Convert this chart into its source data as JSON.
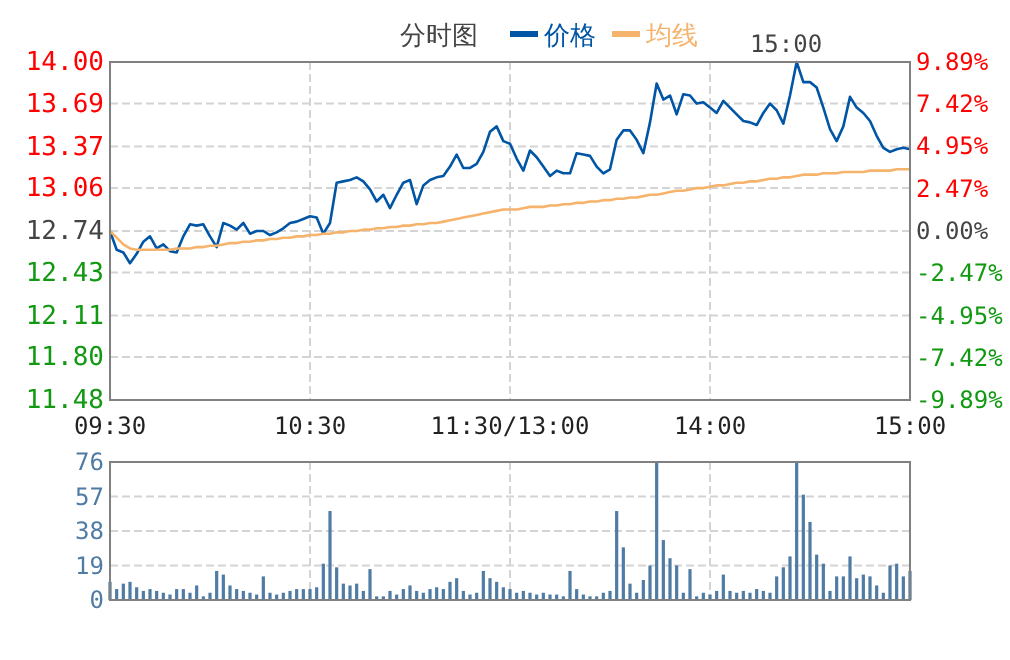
{
  "chart_data": [
    {
      "type": "line",
      "title": "分时图",
      "legend": "top",
      "grid": true,
      "marker": "none",
      "line_style": "solid",
      "annotations": [
        "15:00"
      ],
      "categories": [
        "09:30",
        null,
        null,
        null,
        null,
        null,
        null,
        null,
        null,
        null,
        null,
        null,
        null,
        null,
        null,
        null,
        null,
        null,
        null,
        null,
        null,
        null,
        null,
        null,
        null,
        null,
        null,
        null,
        null,
        null,
        "10:30",
        null,
        null,
        null,
        null,
        null,
        null,
        null,
        null,
        null,
        null,
        null,
        null,
        null,
        null,
        null,
        null,
        null,
        null,
        null,
        null,
        null,
        null,
        null,
        null,
        null,
        null,
        null,
        null,
        null,
        "11:30/13:00",
        null,
        null,
        null,
        null,
        null,
        null,
        null,
        null,
        null,
        null,
        null,
        null,
        null,
        null,
        null,
        null,
        null,
        null,
        null,
        null,
        null,
        null,
        null,
        null,
        null,
        null,
        null,
        null,
        null,
        "14:00",
        null,
        null,
        null,
        null,
        null,
        null,
        null,
        null,
        null,
        null,
        null,
        null,
        null,
        null,
        null,
        null,
        null,
        null,
        null,
        null,
        null,
        null,
        null,
        null,
        null,
        null,
        null,
        null,
        null,
        "15:00"
      ],
      "ylim": [
        11.48,
        14.0
      ],
      "yticks": [
        {
          "value": 11.48,
          "label": "11.48"
        },
        {
          "value": 11.8,
          "label": "11.80"
        },
        {
          "value": 12.11,
          "label": "12.11"
        },
        {
          "value": 12.43,
          "label": "12.43"
        },
        {
          "value": 12.74,
          "label": "12.74"
        },
        {
          "value": 13.06,
          "label": "13.06"
        },
        {
          "value": 13.37,
          "label": "13.37"
        },
        {
          "value": 13.69,
          "label": "13.69"
        },
        {
          "value": 14.0,
          "label": "14.00"
        }
      ],
      "y2lim": [
        -9.89,
        9.89
      ],
      "y2ticks": [
        {
          "value": -9.89,
          "label": "-9.89%"
        },
        {
          "value": -7.42,
          "label": "-7.42%"
        },
        {
          "value": -4.95,
          "label": "-4.95%"
        },
        {
          "value": -2.47,
          "label": "-2.47%"
        },
        {
          "value": 0,
          "label": "0.00%"
        },
        {
          "value": 2.47,
          "label": "2.47%"
        },
        {
          "value": 4.95,
          "label": "4.95%"
        },
        {
          "value": 7.42,
          "label": "7.42%"
        },
        {
          "value": 9.89,
          "label": "9.89%"
        }
      ],
      "series": [
        {
          "name": "价格",
          "color": "#0055a5",
          "values": [
            12.74,
            12.6,
            12.58,
            12.5,
            12.57,
            12.66,
            12.7,
            12.61,
            12.64,
            12.59,
            12.58,
            12.7,
            12.79,
            12.78,
            12.79,
            12.7,
            12.62,
            12.8,
            12.78,
            12.75,
            12.8,
            12.72,
            12.74,
            12.74,
            12.71,
            12.73,
            12.76,
            12.8,
            12.81,
            12.83,
            12.85,
            12.84,
            12.72,
            12.8,
            13.1,
            13.11,
            13.12,
            13.14,
            13.11,
            13.05,
            12.96,
            13.01,
            12.91,
            13.01,
            13.1,
            13.12,
            12.94,
            13.08,
            13.12,
            13.14,
            13.15,
            13.22,
            13.31,
            13.21,
            13.21,
            13.24,
            13.33,
            13.48,
            13.52,
            13.41,
            13.39,
            13.28,
            13.19,
            13.34,
            13.29,
            13.22,
            13.15,
            13.19,
            13.17,
            13.17,
            13.32,
            13.31,
            13.3,
            13.22,
            13.17,
            13.2,
            13.42,
            13.49,
            13.49,
            13.42,
            13.32,
            13.55,
            13.84,
            13.72,
            13.75,
            13.61,
            13.76,
            13.75,
            13.69,
            13.7,
            13.66,
            13.62,
            13.71,
            13.66,
            13.61,
            13.56,
            13.55,
            13.53,
            13.62,
            13.69,
            13.64,
            13.54,
            13.75,
            14.0,
            13.85,
            13.85,
            13.81,
            13.66,
            13.5,
            13.41,
            13.52,
            13.74,
            13.66,
            13.62,
            13.56,
            13.45,
            13.36,
            13.33,
            13.35,
            13.36,
            13.35
          ]
        },
        {
          "name": "均线",
          "color": "#f5b36b",
          "values": [
            12.74,
            12.69,
            12.64,
            12.61,
            12.6,
            12.6,
            12.6,
            12.6,
            12.6,
            12.6,
            12.61,
            12.61,
            12.61,
            12.62,
            12.62,
            12.63,
            12.63,
            12.64,
            12.65,
            12.65,
            12.66,
            12.66,
            12.67,
            12.67,
            12.68,
            12.68,
            12.69,
            12.69,
            12.7,
            12.7,
            12.71,
            12.71,
            12.72,
            12.72,
            12.73,
            12.73,
            12.74,
            12.74,
            12.75,
            12.75,
            12.76,
            12.76,
            12.77,
            12.77,
            12.78,
            12.78,
            12.79,
            12.79,
            12.8,
            12.8,
            12.81,
            12.82,
            12.83,
            12.84,
            12.85,
            12.86,
            12.87,
            12.88,
            12.89,
            12.9,
            12.9,
            12.9,
            12.91,
            12.92,
            12.92,
            12.92,
            12.93,
            12.93,
            12.94,
            12.94,
            12.95,
            12.95,
            12.96,
            12.96,
            12.97,
            12.97,
            12.98,
            12.98,
            12.99,
            12.99,
            13.0,
            13.01,
            13.01,
            13.02,
            13.03,
            13.04,
            13.04,
            13.05,
            13.06,
            13.06,
            13.07,
            13.08,
            13.08,
            13.09,
            13.1,
            13.1,
            13.11,
            13.11,
            13.12,
            13.13,
            13.13,
            13.14,
            13.14,
            13.15,
            13.16,
            13.16,
            13.16,
            13.17,
            13.17,
            13.17,
            13.18,
            13.18,
            13.18,
            13.18,
            13.19,
            13.19,
            13.19,
            13.19,
            13.2,
            13.2,
            13.2
          ]
        }
      ]
    },
    {
      "type": "bar",
      "color": "#4f7ba4",
      "grid": true,
      "tick_labels": "y",
      "categories": [
        null,
        null,
        null,
        null,
        null,
        null,
        null,
        null,
        null,
        null,
        null,
        null,
        null,
        null,
        null,
        null,
        null,
        null,
        null,
        null,
        null,
        null,
        null,
        null,
        null,
        null,
        null,
        null,
        null,
        null,
        null,
        null,
        null,
        null,
        null,
        null,
        null,
        null,
        null,
        null,
        null,
        null,
        null,
        null,
        null,
        null,
        null,
        null,
        null,
        null,
        null,
        null,
        null,
        null,
        null,
        null,
        null,
        null,
        null,
        null,
        null,
        null,
        null,
        null,
        null,
        null,
        null,
        null,
        null,
        null,
        null,
        null,
        null,
        null,
        null,
        null,
        null,
        null,
        null,
        null,
        null,
        null,
        null,
        null,
        null,
        null,
        null,
        null,
        null,
        null,
        null,
        null,
        null,
        null,
        null,
        null,
        null,
        null,
        null,
        null,
        null,
        null,
        null,
        null,
        null,
        null,
        null,
        null,
        null,
        null,
        null,
        null,
        null,
        null,
        null,
        null,
        null,
        null,
        null,
        null,
        null
      ],
      "ylim": [
        0,
        76
      ],
      "yticks": [
        0,
        19,
        38,
        57,
        76
      ],
      "values": [
        10,
        6,
        9,
        10,
        7,
        5,
        6,
        5,
        4,
        3,
        6,
        6,
        4,
        8,
        2,
        4,
        16,
        14,
        8,
        6,
        5,
        4,
        3,
        13,
        4,
        3,
        4,
        5,
        6,
        6,
        6,
        7,
        20,
        49,
        18,
        9,
        8,
        9,
        5,
        17,
        2,
        2,
        5,
        3,
        6,
        8,
        5,
        4,
        6,
        7,
        6,
        10,
        12,
        5,
        3,
        4,
        16,
        12,
        10,
        7,
        6,
        4,
        5,
        4,
        3,
        4,
        3,
        3,
        2,
        16,
        6,
        3,
        2,
        2,
        4,
        5,
        49,
        29,
        9,
        4,
        11,
        19,
        76,
        33,
        23,
        19,
        4,
        17,
        2,
        4,
        3,
        5,
        14,
        5,
        4,
        5,
        4,
        6,
        5,
        4,
        13,
        18,
        24,
        76,
        58,
        43,
        25,
        20,
        5,
        13,
        13,
        24,
        12,
        14,
        13,
        8,
        4,
        19,
        20,
        13,
        16
      ]
    }
  ]
}
